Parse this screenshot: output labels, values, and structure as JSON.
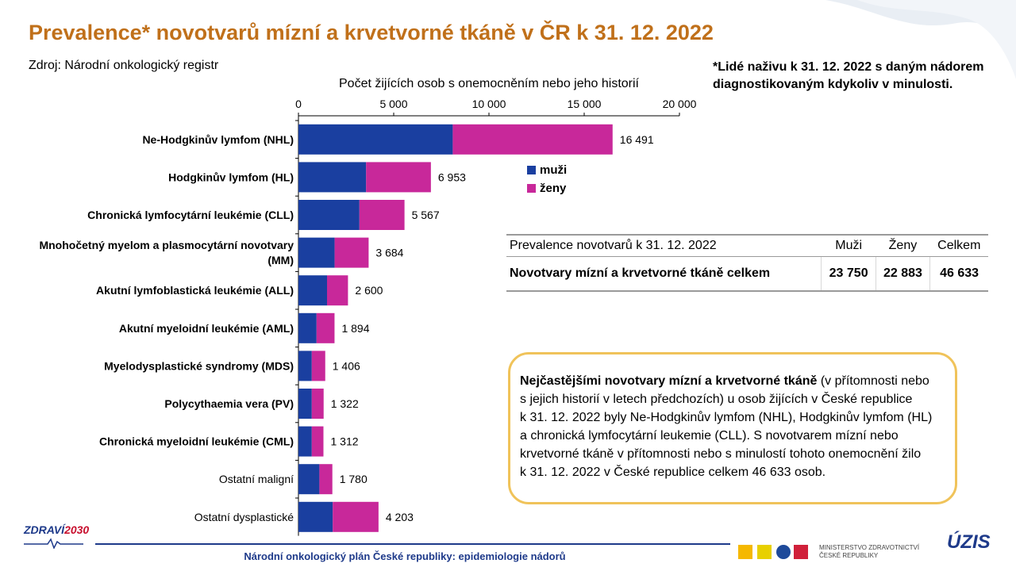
{
  "title": "Prevalence* novotvarů mízní a krvetvorné tkáně v ČR k 31. 12. 2022",
  "source": "Zdroj: Národní onkologický registr",
  "note": "*Lidé naživu k 31. 12. 2022 s daným nádorem diagnostikovaným kdykoliv v minulosti.",
  "colors": {
    "title": "#c0701a",
    "men": "#1a3fa0",
    "women": "#c8289a",
    "box_border": "#f0c35a"
  },
  "chart_data": {
    "type": "bar",
    "orientation": "horizontal",
    "stacked": true,
    "xlabel": "Počet žijících osob s onemocněním nebo jeho historií",
    "xlim": [
      0,
      20000
    ],
    "x_ticks": [
      0,
      5000,
      10000,
      15000,
      20000
    ],
    "x_tick_labels": [
      "0",
      "5 000",
      "10 000",
      "15 000",
      "20 000"
    ],
    "categories": [
      {
        "label": "Ne-Hodgkinův lymfom (NHL)",
        "bold": true
      },
      {
        "label": "Hodgkinův lymfom (HL)",
        "bold": true
      },
      {
        "label": "Chronická lymfocytární leukémie (CLL)",
        "bold": true
      },
      {
        "label": "Mnohočetný myelom a plasmocytární novotvary (MM)",
        "bold": true
      },
      {
        "label": "Akutní lymfoblastická leukémie (ALL)",
        "bold": true
      },
      {
        "label": "Akutní myeloidní leukémie (AML)",
        "bold": true
      },
      {
        "label": "Myelodysplastické syndromy (MDS)",
        "bold": true
      },
      {
        "label": "Polycythaemia vera (PV)",
        "bold": true
      },
      {
        "label": "Chronická myeloidní leukémie (CML)",
        "bold": true
      },
      {
        "label": "Ostatní maligní",
        "bold": false
      },
      {
        "label": "Ostatní dysplastické",
        "bold": false
      }
    ],
    "series": [
      {
        "name": "muži",
        "color": "#1a3fa0",
        "values": [
          8100,
          3550,
          3200,
          1900,
          1500,
          950,
          700,
          700,
          700,
          1100,
          1800
        ]
      },
      {
        "name": "ženy",
        "color": "#c8289a",
        "values": [
          8391,
          3403,
          2367,
          1784,
          1100,
          944,
          706,
          622,
          612,
          680,
          2403
        ]
      }
    ],
    "totals": [
      16491,
      6953,
      5567,
      3684,
      2600,
      1894,
      1406,
      1322,
      1312,
      1780,
      4203
    ],
    "total_labels": [
      "16 491",
      "6 953",
      "5 567",
      "3 684",
      "2 600",
      "1 894",
      "1 406",
      "1 322",
      "1 312",
      "1 780",
      "4 203"
    ],
    "legend_position": "right"
  },
  "table": {
    "headers": [
      "Prevalence novotvarů k 31. 12. 2022",
      "Muži",
      "Ženy",
      "Celkem"
    ],
    "row": [
      "Novotvary mízní a krvetvorné tkáně celkem",
      "23 750",
      "22 883",
      "46 633"
    ]
  },
  "textbox": {
    "bold": "Nejčastějšími novotvary mízní a krvetvorné tkáně",
    "l1": " (v přítomnosti nebo",
    "l2": "s jejich historií v letech předchozích) u osob žijících v České republice",
    "l3": "k 31. 12. 2022 byly Ne-Hodgkinův lymfom (NHL), Hodgkinův lymfom (HL)",
    "l4": "a chronická lymfocytární leukemie (CLL). S novotvarem mízní nebo",
    "l5": "krvetvorné tkáně v přítomnosti nebo s minulostí tohoto onemocnění žilo",
    "l6": "k 31. 12. 2022 v České republice celkem 46 633 osob."
  },
  "footer": "Národní onkologický plán České republiky: epidemiologie nádorů",
  "logos": {
    "zdravi_a": "ZDRAVÍ",
    "zdravi_b": "2030",
    "ministry_l1": "MINISTERSTVO ZDRAVOTNICTVÍ",
    "ministry_l2": "ČESKÉ REPUBLIKY",
    "uzis": "ÚZIS"
  }
}
